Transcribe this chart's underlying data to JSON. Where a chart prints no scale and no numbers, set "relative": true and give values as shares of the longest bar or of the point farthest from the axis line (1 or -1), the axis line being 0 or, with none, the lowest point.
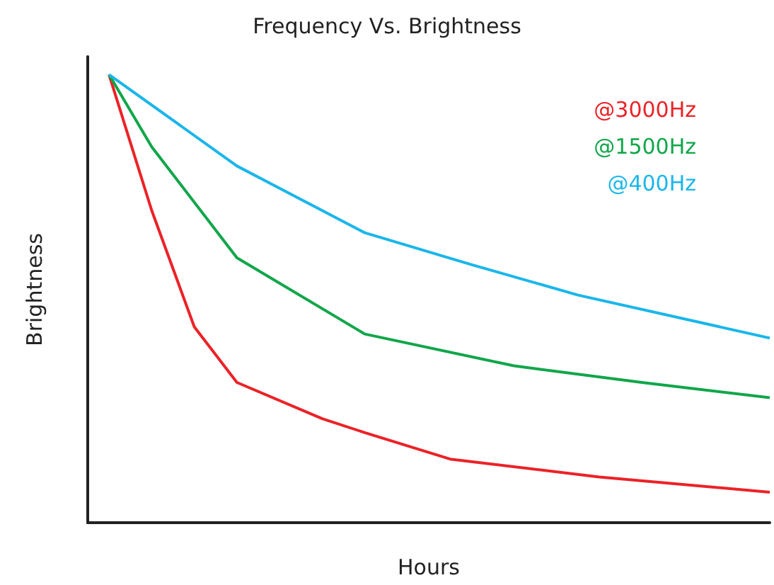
{
  "chart_data": {
    "type": "line",
    "title": "Frequency Vs. Brightness",
    "xlabel": "Hours",
    "ylabel": "Brightness",
    "relative": true,
    "grid": false,
    "marker": "none",
    "categories": [
      null,
      null,
      null,
      null,
      null,
      null,
      null,
      null,
      null,
      null,
      null,
      null,
      null,
      null,
      null,
      null,
      null,
      null,
      null,
      null,
      null,
      null,
      null,
      null,
      null,
      null,
      null,
      null,
      null,
      null,
      null,
      null,
      null
    ],
    "series": [
      {
        "name": "@3000Hz",
        "color": "#ec2227",
        "values": [
          null,
          1,
          null,
          0.697,
          null,
          0.437,
          null,
          0.313,
          null,
          null,
          null,
          0.232,
          null,
          0.201,
          null,
          null,
          null,
          0.142,
          null,
          null,
          null,
          null,
          null,
          null,
          0.102,
          null,
          null,
          null,
          null,
          null,
          null,
          null,
          0.068
        ]
      },
      {
        "name": "@1500Hz",
        "color": "#10a64a",
        "values": [
          null,
          1,
          null,
          0.839,
          null,
          null,
          null,
          0.591,
          null,
          null,
          null,
          null,
          null,
          0.421,
          null,
          null,
          null,
          null,
          null,
          null,
          0.35,
          null,
          null,
          null,
          null,
          null,
          0.313,
          null,
          null,
          null,
          null,
          null,
          0.279
        ]
      },
      {
        "name": "@400Hz",
        "color": "#1ab6ea",
        "values": [
          null,
          1,
          null,
          null,
          null,
          null,
          null,
          0.796,
          null,
          null,
          null,
          null,
          null,
          0.647,
          null,
          null,
          null,
          null,
          0.576,
          null,
          null,
          null,
          null,
          0.508,
          null,
          null,
          null,
          null,
          null,
          null,
          null,
          null,
          0.412
        ]
      }
    ]
  }
}
